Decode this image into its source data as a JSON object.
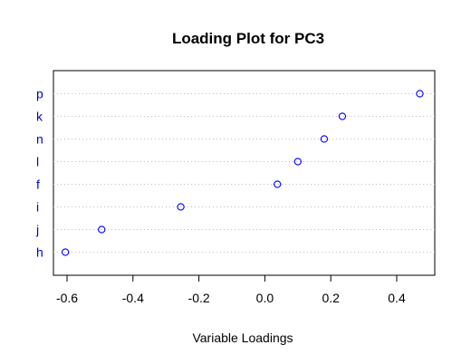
{
  "chart_data": {
    "type": "scatter",
    "title": "Loading Plot for PC3",
    "xlabel": "Variable Loadings",
    "ylabel": "",
    "categories": [
      "p",
      "k",
      "n",
      "l",
      "f",
      "i",
      "j",
      "h"
    ],
    "values": [
      0.47,
      0.235,
      0.18,
      0.1,
      0.038,
      -0.255,
      -0.495,
      -0.605
    ],
    "xlim": [
      -0.65,
      0.5
    ],
    "xticks": [
      "-0.6",
      "-0.4",
      "-0.2",
      "0.0",
      "0.2",
      "0.4"
    ],
    "xtick_values": [
      -0.6,
      -0.4,
      -0.2,
      0.0,
      0.2,
      0.4
    ],
    "grid": "dotted horizontal",
    "legend": "none",
    "colors": {
      "points": "#0000ff",
      "labels": "#0000cd",
      "grid": "#bebebe"
    }
  }
}
